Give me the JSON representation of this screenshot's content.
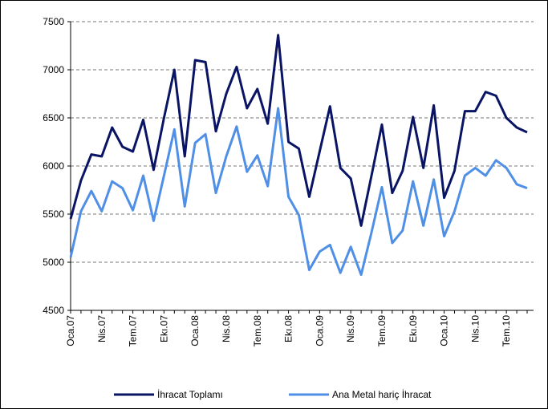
{
  "chart_data": {
    "type": "line",
    "categories": [
      "Oca.07",
      null,
      null,
      "Nis.07",
      null,
      null,
      "Tem.07",
      null,
      null,
      "Ekı.07",
      null,
      null,
      "Oca.08",
      null,
      null,
      "Nis.08",
      null,
      null,
      "Tem.08",
      null,
      null,
      "Ekı.08",
      null,
      null,
      "Oca.09",
      null,
      null,
      "Nis.09",
      null,
      null,
      "Tem.09",
      null,
      null,
      "Ekı.09",
      null,
      null,
      "Oca.10",
      null,
      null,
      "Nis.10",
      null,
      null,
      "Tem.10",
      null,
      null
    ],
    "series": [
      {
        "name": "İhracat Toplamı",
        "color": "#0a1464",
        "values": [
          5450,
          5850,
          6120,
          6100,
          6400,
          6200,
          6150,
          6480,
          5960,
          6500,
          7000,
          6100,
          7100,
          7080,
          6360,
          6750,
          7030,
          6600,
          6800,
          6440,
          7360,
          6250,
          6180,
          5680,
          6150,
          6620,
          5980,
          5870,
          5380,
          5900,
          6430,
          5720,
          5950,
          6510,
          5980,
          6630,
          5670,
          5950,
          6570,
          6570,
          6770,
          6730,
          6500,
          6400,
          6350
        ]
      },
      {
        "name": "Ana Metal hariç İhracat",
        "color": "#4f8fe6",
        "values": [
          5050,
          5530,
          5740,
          5530,
          5840,
          5770,
          5540,
          5900,
          5430,
          5900,
          6380,
          5580,
          6240,
          6330,
          5720,
          6100,
          6410,
          5940,
          6110,
          5790,
          6600,
          5680,
          5490,
          4920,
          5110,
          5180,
          4890,
          5160,
          4870,
          5310,
          5780,
          5200,
          5330,
          5840,
          5380,
          5860,
          5270,
          5530,
          5900,
          5980,
          5900,
          6060,
          5980,
          5810,
          5770
        ]
      }
    ],
    "ylim": [
      4500,
      7500
    ],
    "yticks": [
      4500,
      5000,
      5500,
      6000,
      6500,
      7000,
      7500
    ],
    "grid": true,
    "legend": "bottom"
  }
}
